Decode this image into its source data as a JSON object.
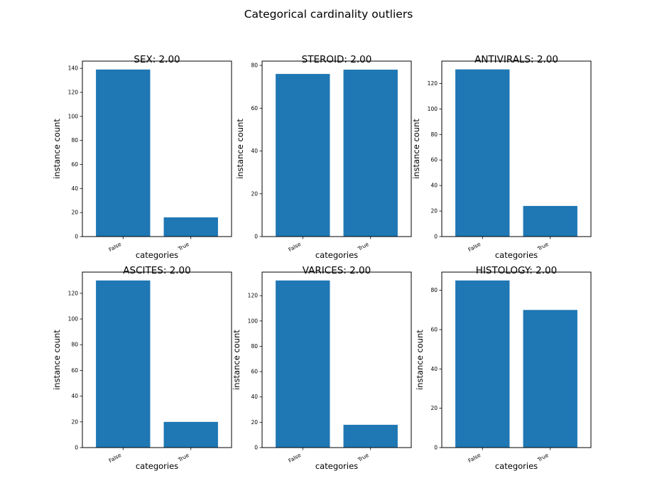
{
  "figure_title": "Categorical cardinality outliers",
  "colors": {
    "bar": "#1f77b4",
    "axis": "#000000"
  },
  "chart_data": [
    {
      "type": "bar",
      "title": "SEX: 2.00",
      "xlabel": "categories",
      "ylabel": "instance count",
      "categories": [
        "False",
        "True"
      ],
      "values": [
        139,
        16
      ],
      "ylim": [
        0,
        146
      ],
      "yticks": [
        0,
        20,
        40,
        60,
        80,
        100,
        120,
        140
      ]
    },
    {
      "type": "bar",
      "title": "STEROID: 2.00",
      "xlabel": "categories",
      "ylabel": "instance count",
      "categories": [
        "False",
        "True"
      ],
      "values": [
        76,
        78
      ],
      "ylim": [
        0,
        82
      ],
      "yticks": [
        0,
        20,
        40,
        60,
        80
      ]
    },
    {
      "type": "bar",
      "title": "ANTIVIRALS: 2.00",
      "xlabel": "categories",
      "ylabel": "instance count",
      "categories": [
        "False",
        "True"
      ],
      "values": [
        131,
        24
      ],
      "ylim": [
        0,
        137.5
      ],
      "yticks": [
        0,
        20,
        40,
        60,
        80,
        100,
        120
      ]
    },
    {
      "type": "bar",
      "title": "ASCITES: 2.00",
      "xlabel": "categories",
      "ylabel": "instance count",
      "categories": [
        "False",
        "True"
      ],
      "values": [
        130,
        20
      ],
      "ylim": [
        0,
        136.5
      ],
      "yticks": [
        0,
        20,
        40,
        60,
        80,
        100,
        120
      ]
    },
    {
      "type": "bar",
      "title": "VARICES: 2.00",
      "xlabel": "categories",
      "ylabel": "instance count",
      "categories": [
        "False",
        "True"
      ],
      "values": [
        132,
        18
      ],
      "ylim": [
        0,
        138.6
      ],
      "yticks": [
        0,
        20,
        40,
        60,
        80,
        100,
        120
      ]
    },
    {
      "type": "bar",
      "title": "HISTOLOGY: 2.00",
      "xlabel": "categories",
      "ylabel": "instance count",
      "categories": [
        "False",
        "True"
      ],
      "values": [
        85,
        70
      ],
      "ylim": [
        0,
        89.25
      ],
      "yticks": [
        0,
        20,
        40,
        60,
        80
      ]
    }
  ]
}
